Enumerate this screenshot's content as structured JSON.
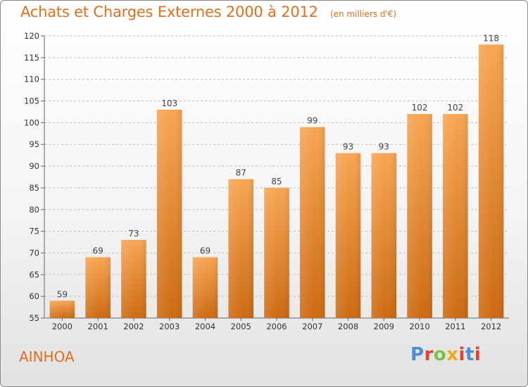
{
  "header": {
    "title": "Achats et Charges Externes 2000 à 2012",
    "subtitle": "(en milliers d'€)"
  },
  "footer": {
    "commune": "AINHOA",
    "logo_text": "Proxiti",
    "logo_colors": [
      "#4a8fd6",
      "#e8412f",
      "#7cc142",
      "#f2a81d",
      "#e8412f",
      "#4a8fd6",
      "#e8412f"
    ]
  },
  "colors": {
    "bar_top": "#f7a552",
    "bar_bottom": "#cc6a12",
    "accent": "#e0701c",
    "grid": "#bfbfbf"
  },
  "chart_data": {
    "type": "bar",
    "title": "Achats et Charges Externes 2000 à 2012",
    "subtitle": "(en milliers d'€)",
    "xlabel": "",
    "ylabel": "",
    "categories": [
      "2000",
      "2001",
      "2002",
      "2003",
      "2004",
      "2005",
      "2006",
      "2007",
      "2008",
      "2009",
      "2010",
      "2011",
      "2012"
    ],
    "values": [
      59,
      69,
      73,
      103,
      69,
      87,
      85,
      99,
      93,
      93,
      102,
      102,
      118
    ],
    "data_labels": [
      "59",
      "69",
      "73",
      "103",
      "69",
      "87",
      "85",
      "99",
      "93",
      "93",
      "102",
      "102",
      "118"
    ],
    "ylim": [
      55,
      120
    ],
    "yticks": [
      55,
      60,
      65,
      70,
      75,
      80,
      85,
      90,
      95,
      100,
      105,
      110,
      115,
      120
    ],
    "grid": true,
    "legend": "none"
  }
}
